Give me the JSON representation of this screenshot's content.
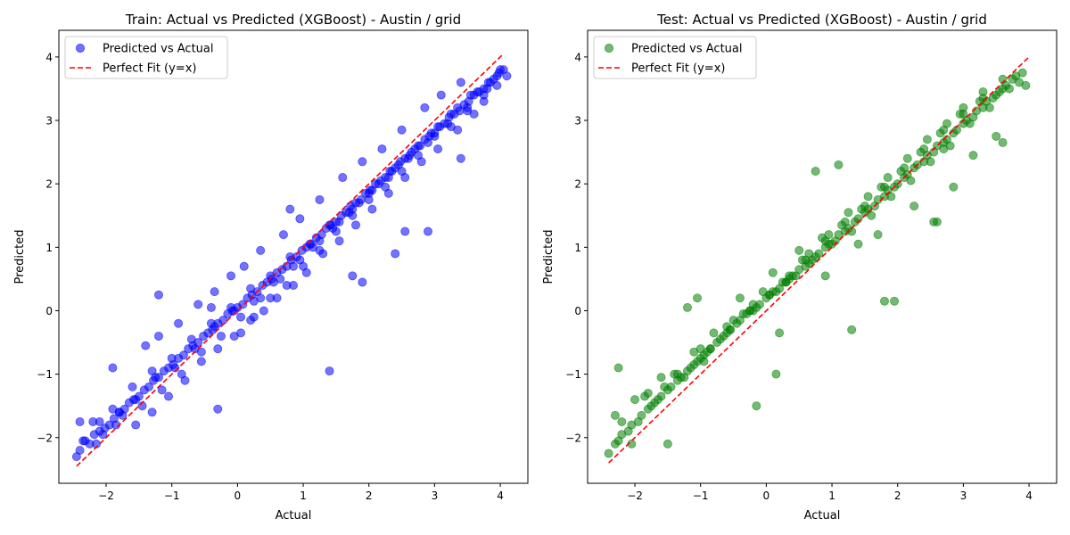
{
  "chart_data": [
    {
      "type": "scatter",
      "title": "Train: Actual vs Predicted (XGBoost) - Austin / grid",
      "xlabel": "Actual",
      "ylabel": "Predicted",
      "xlim": [
        -2.72,
        4.42
      ],
      "ylim": [
        -2.72,
        4.42
      ],
      "xticks": [
        -2,
        -1,
        0,
        1,
        2,
        3,
        4
      ],
      "yticks": [
        -2,
        -1,
        0,
        1,
        2,
        3,
        4
      ],
      "xtick_labels": [
        "−2",
        "−1",
        "0",
        "1",
        "2",
        "3",
        "4"
      ],
      "ytick_labels": [
        "−2",
        "−1",
        "0",
        "1",
        "2",
        "3",
        "4"
      ],
      "grid": false,
      "legend_position": "top-left",
      "series": [
        {
          "name": "Predicted vs Actual",
          "kind": "scatter",
          "color": "#0000ff",
          "alpha": 0.55,
          "x": [
            -2.45,
            -2.4,
            -2.32,
            -2.25,
            -2.18,
            -2.1,
            -2.02,
            -1.95,
            -1.88,
            -1.8,
            -1.72,
            -1.65,
            -1.58,
            -1.5,
            -1.42,
            -1.35,
            -1.28,
            -1.2,
            -1.12,
            -1.05,
            -0.98,
            -0.9,
            -0.82,
            -0.75,
            -0.68,
            -0.6,
            -0.52,
            -0.45,
            -0.38,
            -0.3,
            -0.22,
            -0.15,
            -0.08,
            0.0,
            0.08,
            0.15,
            0.22,
            0.3,
            0.38,
            0.45,
            0.52,
            0.6,
            0.68,
            0.75,
            0.82,
            0.9,
            0.98,
            1.05,
            1.12,
            1.2,
            1.28,
            1.35,
            1.42,
            1.5,
            1.58,
            1.65,
            1.72,
            1.8,
            1.88,
            1.95,
            2.02,
            2.1,
            2.18,
            2.25,
            2.32,
            2.4,
            2.48,
            2.55,
            2.62,
            2.7,
            2.78,
            2.85,
            2.92,
            3.0,
            3.08,
            3.15,
            3.22,
            3.3,
            3.38,
            3.45,
            3.52,
            3.6,
            3.68,
            3.75,
            3.82,
            3.9,
            3.98,
            4.05,
            -2.2,
            -1.9,
            -1.6,
            -1.3,
            -1.0,
            -0.7,
            -0.4,
            -0.1,
            0.2,
            0.5,
            0.8,
            1.1,
            1.4,
            1.7,
            2.0,
            2.3,
            2.6,
            2.9,
            3.2,
            3.5,
            3.8,
            -2.35,
            -2.05,
            -1.75,
            -1.45,
            -1.15,
            -0.85,
            -0.55,
            -0.25,
            0.05,
            0.35,
            0.65,
            0.95,
            1.25,
            1.55,
            1.85,
            2.15,
            2.45,
            2.75,
            3.05,
            3.35,
            3.65,
            3.95,
            -2.15,
            -1.85,
            -1.55,
            -1.25,
            -0.95,
            -0.65,
            -0.35,
            -0.05,
            0.25,
            0.55,
            0.85,
            1.15,
            1.45,
            1.75,
            2.05,
            2.35,
            2.65,
            2.95,
            3.25,
            3.55,
            3.85,
            -1.4,
            -1.2,
            -0.9,
            -0.6,
            -0.35,
            -0.1,
            0.1,
            0.35,
            0.7,
            0.95,
            1.25,
            1.6,
            1.9,
            2.2,
            2.5,
            2.85,
            3.1,
            3.4,
            0.05,
            0.2,
            0.4,
            0.6,
            0.85,
            1.05,
            1.3,
            1.55,
            1.8,
            2.05,
            2.3,
            2.55,
            2.8,
            3.05,
            3.35,
            3.6,
            3.75,
            3.95,
            4.1,
            -0.3,
            1.4,
            1.75,
            2.55,
            2.9,
            -1.9,
            -1.2,
            -0.4,
            0.8,
            1.9,
            2.4,
            3.4,
            -2.4,
            -2.1,
            -1.8,
            -1.55,
            -1.3,
            -1.05,
            -0.8,
            -0.55,
            -0.3,
            -0.05,
            0.25,
            0.5,
            0.75,
            1.0,
            1.25,
            1.5,
            1.75,
            2.0,
            2.25,
            2.5,
            2.75,
            3.0,
            3.25,
            3.5,
            3.75,
            4.0
          ],
          "y": [
            -2.3,
            -2.2,
            -2.05,
            -2.1,
            -1.95,
            -1.9,
            -1.85,
            -1.8,
            -1.7,
            -1.6,
            -1.55,
            -1.45,
            -1.4,
            -1.35,
            -1.25,
            -1.2,
            -1.1,
            -1.05,
            -0.95,
            -0.9,
            -0.85,
            -0.75,
            -0.7,
            -0.6,
            -0.55,
            -0.5,
            -0.4,
            -0.35,
            -0.3,
            -0.2,
            -0.15,
            -0.05,
            0.0,
            0.05,
            0.1,
            0.2,
            0.25,
            0.3,
            0.4,
            0.45,
            0.5,
            0.6,
            0.65,
            0.7,
            0.8,
            0.85,
            0.95,
            1.0,
            1.05,
            1.15,
            1.2,
            1.3,
            1.35,
            1.4,
            1.5,
            1.55,
            1.65,
            1.7,
            1.75,
            1.85,
            1.9,
            2.0,
            2.05,
            2.1,
            2.2,
            2.25,
            2.35,
            2.4,
            2.45,
            2.55,
            2.6,
            2.7,
            2.75,
            2.8,
            2.9,
            2.95,
            3.05,
            3.1,
            3.15,
            3.25,
            3.3,
            3.4,
            3.45,
            3.5,
            3.6,
            3.65,
            3.75,
            3.8,
            -1.75,
            -1.55,
            -1.2,
            -0.95,
            -0.75,
            -0.45,
            -0.2,
            0.05,
            0.35,
            0.55,
            0.85,
            1.05,
            1.35,
            1.55,
            1.85,
            2.1,
            2.4,
            2.65,
            2.95,
            3.2,
            3.5,
            -2.05,
            -1.95,
            -1.65,
            -1.5,
            -1.25,
            -1.0,
            -0.65,
            -0.4,
            -0.1,
            0.2,
            0.5,
            0.8,
            1.1,
            1.4,
            1.7,
            2.0,
            2.3,
            2.6,
            2.9,
            3.2,
            3.45,
            3.7,
            -2.1,
            -1.8,
            -1.4,
            -1.05,
            -0.9,
            -0.6,
            -0.25,
            0.0,
            0.15,
            0.45,
            0.7,
            1.0,
            1.3,
            1.6,
            1.9,
            2.2,
            2.5,
            2.8,
            3.1,
            3.4,
            3.6,
            -0.55,
            -0.4,
            -0.2,
            0.1,
            0.3,
            0.55,
            0.7,
            0.95,
            1.2,
            1.45,
            1.75,
            2.1,
            2.35,
            2.55,
            2.85,
            3.2,
            3.4,
            3.6,
            -0.35,
            -0.15,
            0.0,
            0.2,
            0.4,
            0.6,
            0.9,
            1.1,
            1.35,
            1.6,
            1.85,
            2.1,
            2.35,
            2.55,
            2.85,
            3.1,
            3.3,
            3.55,
            3.7,
            -1.55,
            -0.95,
            0.55,
            1.25,
            1.25,
            -0.9,
            0.25,
            0.05,
            1.6,
            0.45,
            0.9,
            2.4,
            -1.75,
            -1.75,
            -1.6,
            -1.8,
            -1.6,
            -1.35,
            -1.1,
            -0.8,
            -0.6,
            -0.4,
            -0.1,
            0.2,
            0.4,
            0.7,
            0.95,
            1.25,
            1.5,
            1.75,
            1.95,
            2.2,
            2.45,
            2.75,
            2.9,
            3.15,
            3.4,
            3.8
          ]
        },
        {
          "name": "Perfect Fit (y=x)",
          "kind": "line",
          "color": "#ff0000",
          "dash": "dashed",
          "x": [
            -2.45,
            4.05
          ],
          "y": [
            -2.45,
            4.05
          ]
        }
      ]
    },
    {
      "type": "scatter",
      "title": "Test: Actual vs Predicted (XGBoost) - Austin / grid",
      "xlabel": "Actual",
      "ylabel": "Predicted",
      "xlim": [
        -2.72,
        4.42
      ],
      "ylim": [
        -2.72,
        4.42
      ],
      "xticks": [
        -2,
        -1,
        0,
        1,
        2,
        3,
        4
      ],
      "yticks": [
        -2,
        -1,
        0,
        1,
        2,
        3,
        4
      ],
      "xtick_labels": [
        "−2",
        "−1",
        "0",
        "1",
        "2",
        "3",
        "4"
      ],
      "ytick_labels": [
        "−2",
        "−1",
        "0",
        "1",
        "2",
        "3",
        "4"
      ],
      "grid": false,
      "legend_position": "top-left",
      "series": [
        {
          "name": "Predicted vs Actual",
          "kind": "scatter",
          "color": "#008000",
          "alpha": 0.55,
          "x": [
            -2.4,
            -2.3,
            -2.25,
            -2.2,
            -2.1,
            -2.05,
            -1.95,
            -1.9,
            -1.8,
            -1.75,
            -1.65,
            -1.6,
            -1.5,
            -1.45,
            -1.35,
            -1.3,
            -1.2,
            -1.15,
            -1.05,
            -1.0,
            -0.9,
            -0.85,
            -0.75,
            -0.7,
            -0.6,
            -0.55,
            -0.45,
            -0.4,
            -0.3,
            -0.25,
            -0.15,
            -0.1,
            0.0,
            0.05,
            0.15,
            0.2,
            0.3,
            0.35,
            0.45,
            0.5,
            0.6,
            0.65,
            0.75,
            0.8,
            0.9,
            0.95,
            1.05,
            1.1,
            1.2,
            1.25,
            1.35,
            1.4,
            1.5,
            1.55,
            1.65,
            1.7,
            1.8,
            1.85,
            1.95,
            2.0,
            2.1,
            2.15,
            2.25,
            2.3,
            2.4,
            2.45,
            2.55,
            2.6,
            2.7,
            2.75,
            2.85,
            2.9,
            3.0,
            3.05,
            3.15,
            3.2,
            3.3,
            3.35,
            3.45,
            3.5,
            3.6,
            3.65,
            3.75,
            3.8,
            3.9,
            -2.3,
            -2.0,
            -1.7,
            -1.4,
            -1.1,
            -0.8,
            -0.5,
            -0.2,
            0.1,
            0.4,
            0.7,
            1.0,
            1.3,
            1.6,
            1.9,
            2.2,
            2.5,
            2.8,
            3.1,
            3.4,
            3.7,
            -2.2,
            -1.85,
            -1.55,
            -1.25,
            -0.95,
            -0.65,
            -0.35,
            -0.05,
            0.25,
            0.55,
            0.85,
            1.15,
            1.45,
            1.75,
            2.05,
            2.35,
            2.65,
            2.95,
            3.25,
            3.55,
            3.85,
            -2.25,
            -1.2,
            -1.05,
            -0.15,
            0.1,
            0.15,
            0.75,
            1.1,
            1.3,
            1.8,
            1.95,
            2.55,
            2.6,
            2.85,
            -2.05,
            -1.5,
            -0.95,
            -0.4,
            0.2,
            0.5,
            0.9,
            1.4,
            1.7,
            2.25,
            2.7,
            3.15,
            3.5,
            3.6,
            -1.0,
            -0.6,
            -0.2,
            0.3,
            0.65,
            0.95,
            1.25,
            1.55,
            1.85,
            2.15,
            2.45,
            2.75,
            3.0,
            3.3,
            -1.8,
            -1.6,
            -1.35,
            -1.1,
            -0.85,
            -0.55,
            -0.25,
            0.05,
            0.35,
            0.6,
            0.9,
            1.2,
            1.5,
            1.8,
            2.1,
            2.4,
            2.7,
            3.0,
            3.3,
            3.6,
            3.95
          ],
          "y": [
            -2.25,
            -2.1,
            -2.05,
            -1.95,
            -1.9,
            -1.8,
            -1.75,
            -1.65,
            -1.55,
            -1.5,
            -1.4,
            -1.35,
            -1.25,
            -1.2,
            -1.1,
            -1.05,
            -0.95,
            -0.9,
            -0.8,
            -0.75,
            -0.65,
            -0.6,
            -0.5,
            -0.45,
            -0.35,
            -0.3,
            -0.2,
            -0.15,
            -0.05,
            0.0,
            0.05,
            0.1,
            0.2,
            0.25,
            0.3,
            0.35,
            0.45,
            0.5,
            0.55,
            0.65,
            0.7,
            0.75,
            0.85,
            0.9,
            1.0,
            1.05,
            1.1,
            1.2,
            1.25,
            1.3,
            1.4,
            1.45,
            1.55,
            1.6,
            1.65,
            1.75,
            1.8,
            1.9,
            1.95,
            2.0,
            2.1,
            2.15,
            2.25,
            2.3,
            2.35,
            2.45,
            2.5,
            2.6,
            2.65,
            2.7,
            2.8,
            2.85,
            2.95,
            3.0,
            3.05,
            3.15,
            3.2,
            3.3,
            3.35,
            3.4,
            3.5,
            3.55,
            3.65,
            3.7,
            3.75,
            -1.65,
            -1.4,
            -1.45,
            -1.0,
            -0.65,
            -0.35,
            -0.15,
            0.0,
            0.3,
            0.55,
            0.8,
            1.05,
            1.25,
            1.5,
            1.8,
            2.05,
            2.35,
            2.6,
            2.95,
            3.2,
            3.5,
            -1.75,
            -1.35,
            -1.2,
            -1.05,
            -0.8,
            -0.4,
            -0.05,
            0.3,
            0.45,
            0.8,
            1.15,
            1.35,
            1.6,
            1.95,
            2.2,
            2.5,
            2.8,
            3.1,
            3.3,
            3.45,
            3.6,
            -0.9,
            0.05,
            0.2,
            -1.5,
            0.6,
            -1.0,
            2.2,
            2.3,
            -0.3,
            0.15,
            0.15,
            1.4,
            1.4,
            1.95,
            -2.1,
            -2.1,
            -0.7,
            0.2,
            -0.35,
            0.95,
            0.55,
            1.05,
            1.2,
            1.65,
            2.55,
            2.45,
            2.75,
            2.65,
            -0.6,
            -0.25,
            0.1,
            0.45,
            0.9,
            1.2,
            1.55,
            1.8,
            2.1,
            2.4,
            2.7,
            2.95,
            3.2,
            3.45,
            -1.3,
            -1.05,
            -1.0,
            -0.85,
            -0.6,
            -0.3,
            0.0,
            0.25,
            0.55,
            0.8,
            1.1,
            1.4,
            1.65,
            1.95,
            2.25,
            2.55,
            2.85,
            3.1,
            3.35,
            3.65,
            3.55
          ]
        },
        {
          "name": "Perfect Fit (y=x)",
          "kind": "line",
          "color": "#ff0000",
          "dash": "dashed",
          "x": [
            -2.4,
            4.0
          ],
          "y": [
            -2.4,
            4.0
          ]
        }
      ]
    }
  ]
}
